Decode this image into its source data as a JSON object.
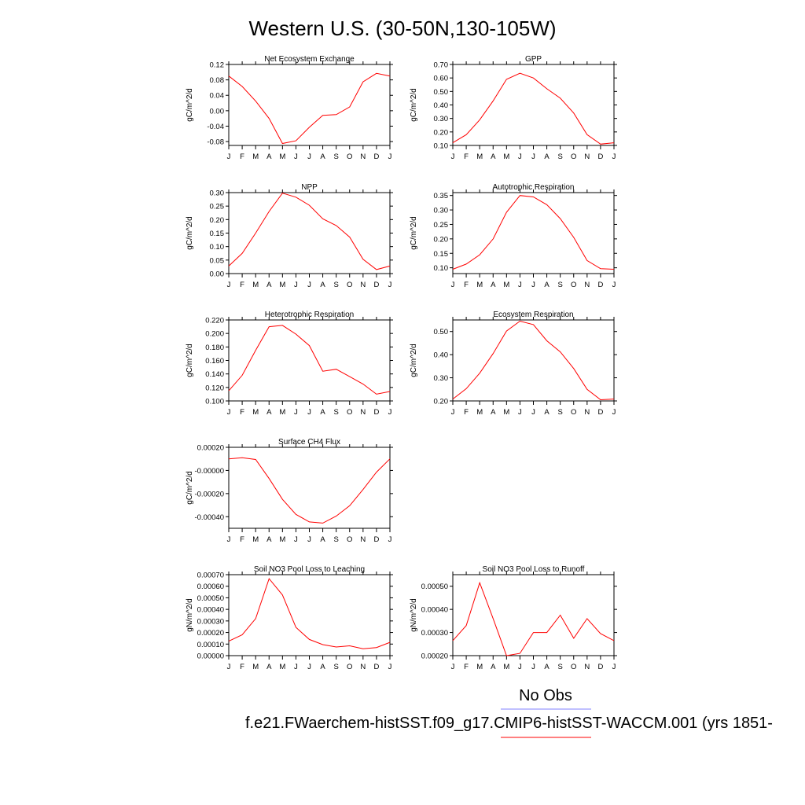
{
  "title": "Western U.S. (30-50N,130-105W)",
  "legend": {
    "obs_label": "No Obs",
    "obs_color": "#8080ff",
    "case_label": "f.e21.FWaerchem-histSST.f09_g17.CMIP6-histSST-WACCM.001 (yrs 1851-",
    "case_color": "#ff0000"
  },
  "chart_data": [
    {
      "type": "line",
      "title": "Net Ecosystem Exchange",
      "ylabel": "gC/m^2/d",
      "x": [
        "J",
        "F",
        "M",
        "A",
        "M",
        "J",
        "J",
        "A",
        "S",
        "O",
        "N",
        "D",
        "J"
      ],
      "ylim": [
        -0.09,
        0.12
      ],
      "yticks": [
        "0.12",
        "0.08",
        "0.04",
        "0.00",
        "-0.04",
        "-0.08"
      ],
      "ytick_values": [
        0.12,
        0.08,
        0.04,
        0.0,
        -0.04,
        -0.08
      ],
      "series": [
        {
          "color": "#ff0000",
          "values": [
            0.09,
            0.063,
            0.025,
            -0.02,
            -0.085,
            -0.078,
            -0.043,
            -0.012,
            -0.01,
            0.01,
            0.075,
            0.097,
            0.09
          ]
        }
      ]
    },
    {
      "type": "line",
      "title": "GPP",
      "ylabel": "gC/m^2/d",
      "x": [
        "J",
        "F",
        "M",
        "A",
        "M",
        "J",
        "J",
        "A",
        "S",
        "O",
        "N",
        "D",
        "J"
      ],
      "ylim": [
        0.1,
        0.7
      ],
      "yticks": [
        "0.70",
        "0.60",
        "0.50",
        "0.40",
        "0.30",
        "0.20",
        "0.10"
      ],
      "ytick_values": [
        0.7,
        0.6,
        0.5,
        0.4,
        0.3,
        0.2,
        0.1
      ],
      "series": [
        {
          "color": "#ff0000",
          "values": [
            0.12,
            0.18,
            0.29,
            0.43,
            0.59,
            0.635,
            0.6,
            0.52,
            0.45,
            0.34,
            0.18,
            0.11,
            0.12
          ]
        }
      ]
    },
    {
      "type": "line",
      "title": "NPP",
      "ylabel": "gC/m^2/d",
      "x": [
        "J",
        "F",
        "M",
        "A",
        "M",
        "J",
        "J",
        "A",
        "S",
        "O",
        "N",
        "D",
        "J"
      ],
      "ylim": [
        0.0,
        0.3
      ],
      "yticks": [
        "0.30",
        "0.25",
        "0.20",
        "0.15",
        "0.10",
        "0.05",
        "0.00"
      ],
      "ytick_values": [
        0.3,
        0.25,
        0.2,
        0.15,
        0.1,
        0.05,
        0.0
      ],
      "series": [
        {
          "color": "#ff0000",
          "values": [
            0.028,
            0.075,
            0.15,
            0.23,
            0.298,
            0.283,
            0.253,
            0.203,
            0.178,
            0.135,
            0.053,
            0.015,
            0.028
          ]
        }
      ]
    },
    {
      "type": "line",
      "title": "Autotrophic Respiration",
      "ylabel": "gC/m^2/d",
      "x": [
        "J",
        "F",
        "M",
        "A",
        "M",
        "J",
        "J",
        "A",
        "S",
        "O",
        "N",
        "D",
        "J"
      ],
      "ylim": [
        0.08,
        0.36
      ],
      "yticks": [
        "0.35",
        "0.30",
        "0.25",
        "0.20",
        "0.15",
        "0.10"
      ],
      "ytick_values": [
        0.35,
        0.3,
        0.25,
        0.2,
        0.15,
        0.1
      ],
      "series": [
        {
          "color": "#ff0000",
          "values": [
            0.095,
            0.113,
            0.145,
            0.2,
            0.292,
            0.35,
            0.345,
            0.318,
            0.27,
            0.205,
            0.125,
            0.097,
            0.095
          ]
        }
      ]
    },
    {
      "type": "line",
      "title": "Heterotrophic Respiration",
      "ylabel": "gC/m^2/d",
      "x": [
        "J",
        "F",
        "M",
        "A",
        "M",
        "J",
        "J",
        "A",
        "S",
        "O",
        "N",
        "D",
        "J"
      ],
      "ylim": [
        0.1,
        0.22
      ],
      "yticks": [
        "0.220",
        "0.200",
        "0.180",
        "0.160",
        "0.140",
        "0.120",
        "0.100"
      ],
      "ytick_values": [
        0.22,
        0.2,
        0.18,
        0.16,
        0.14,
        0.12,
        0.1
      ],
      "series": [
        {
          "color": "#ff0000",
          "values": [
            0.115,
            0.138,
            0.175,
            0.21,
            0.212,
            0.199,
            0.182,
            0.144,
            0.147,
            0.136,
            0.125,
            0.11,
            0.114
          ]
        }
      ]
    },
    {
      "type": "line",
      "title": "Ecosystem Respiration",
      "ylabel": "gC/m^2/d",
      "x": [
        "J",
        "F",
        "M",
        "A",
        "M",
        "J",
        "J",
        "A",
        "S",
        "O",
        "N",
        "D",
        "J"
      ],
      "ylim": [
        0.2,
        0.55
      ],
      "yticks": [
        "0.50",
        "0.40",
        "0.30",
        "0.20"
      ],
      "ytick_values": [
        0.5,
        0.4,
        0.3,
        0.2
      ],
      "series": [
        {
          "color": "#ff0000",
          "values": [
            0.208,
            0.253,
            0.32,
            0.405,
            0.502,
            0.545,
            0.53,
            0.46,
            0.412,
            0.34,
            0.25,
            0.205,
            0.208
          ]
        }
      ]
    },
    {
      "type": "line",
      "title": "Surface CH4 Flux",
      "ylabel": "gC/m^2/d",
      "x": [
        "J",
        "F",
        "M",
        "A",
        "M",
        "J",
        "J",
        "A",
        "S",
        "O",
        "N",
        "D",
        "J"
      ],
      "ylim": [
        -0.0005,
        0.0002
      ],
      "yticks": [
        "0.00020",
        "-0.00000",
        "-0.00020",
        "-0.00040"
      ],
      "ytick_values": [
        0.0002,
        0.0,
        -0.0002,
        -0.0004
      ],
      "series": [
        {
          "color": "#ff0000",
          "values": [
            0.0001,
            0.00011,
            9.5e-05,
            -7e-05,
            -0.00025,
            -0.00038,
            -0.000445,
            -0.000455,
            -0.000395,
            -0.000305,
            -0.000165,
            -1.5e-05,
            0.0001
          ]
        }
      ]
    },
    {
      "type": "line",
      "title": "Soil NO3 Pool Loss to Leaching",
      "ylabel": "gN/m^2/d",
      "x": [
        "J",
        "F",
        "M",
        "A",
        "M",
        "J",
        "J",
        "A",
        "S",
        "O",
        "N",
        "D",
        "J"
      ],
      "ylim": [
        0.0,
        0.0007
      ],
      "yticks": [
        "0.00070",
        "0.00060",
        "0.00050",
        "0.00040",
        "0.00030",
        "0.00020",
        "0.00010",
        "0.00000"
      ],
      "ytick_values": [
        0.0007,
        0.0006,
        0.0005,
        0.0004,
        0.0003,
        0.0002,
        0.0001,
        0.0
      ],
      "series": [
        {
          "color": "#ff0000",
          "values": [
            0.000125,
            0.00018,
            0.00032,
            0.000665,
            0.000525,
            0.000245,
            0.00014,
            9.5e-05,
            7.5e-05,
            8.5e-05,
            6e-05,
            7e-05,
            0.000115
          ]
        }
      ]
    },
    {
      "type": "line",
      "title": "Soil NO3 Pool Loss to Runoff",
      "ylabel": "gN/m^2/d",
      "x": [
        "J",
        "F",
        "M",
        "A",
        "M",
        "J",
        "J",
        "A",
        "S",
        "O",
        "N",
        "D",
        "J"
      ],
      "ylim": [
        0.0002,
        0.00055
      ],
      "yticks": [
        "0.00050",
        "0.00040",
        "0.00030",
        "0.00020"
      ],
      "ytick_values": [
        0.0005,
        0.0004,
        0.0003,
        0.0002
      ],
      "series": [
        {
          "color": "#ff0000",
          "values": [
            0.000265,
            0.00033,
            0.000515,
            0.00036,
            0.0002,
            0.00021,
            0.0003,
            0.0003,
            0.000375,
            0.000275,
            0.00036,
            0.000295,
            0.000265
          ]
        }
      ]
    }
  ]
}
